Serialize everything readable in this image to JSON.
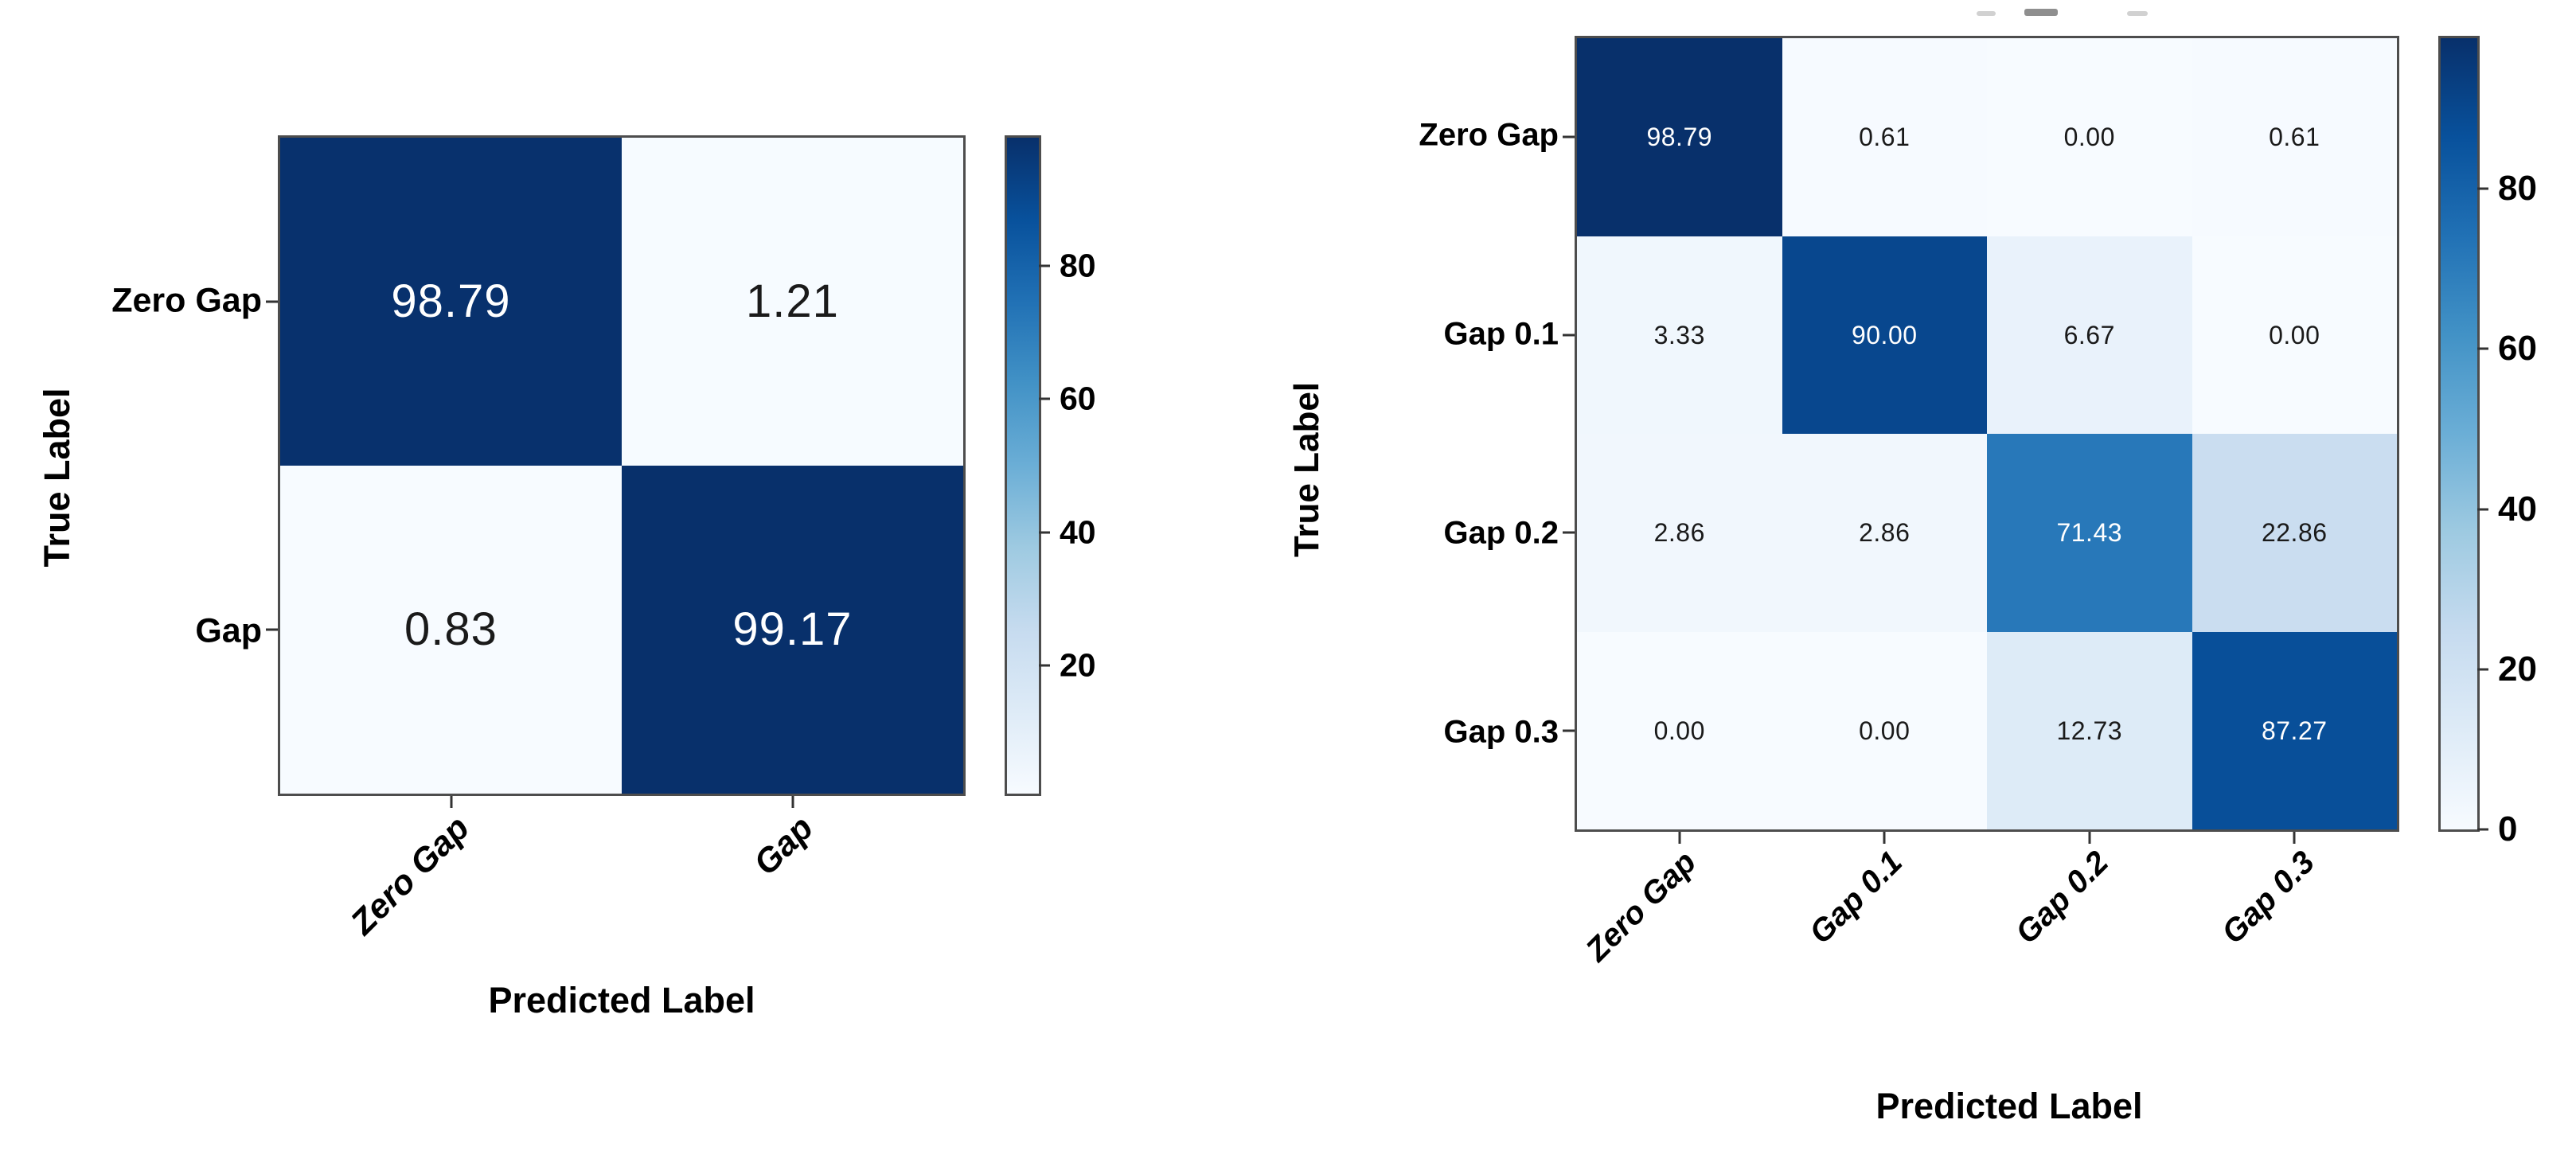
{
  "page": {
    "background": "#ffffff"
  },
  "chart_data": [
    {
      "type": "heatmap",
      "name": "confusion-matrix-2-class",
      "title": "",
      "xlabel": "Predicted Label",
      "ylabel": "True Label",
      "categories": [
        "Zero Gap",
        "Gap"
      ],
      "matrix": [
        [
          98.79,
          1.21
        ],
        [
          0.83,
          99.17
        ]
      ],
      "value_decimals": 2,
      "colormap": "Blues",
      "vmin": 0.83,
      "vmax": 99.17,
      "colorbar_ticks": [
        20,
        40,
        60,
        80
      ],
      "legend_position": "right-colorbar",
      "grid": false
    },
    {
      "type": "heatmap",
      "name": "confusion-matrix-4-class",
      "title": "",
      "xlabel": "Predicted Label",
      "ylabel": "True Label",
      "categories": [
        "Zero Gap",
        "Gap 0.1",
        "Gap 0.2",
        "Gap 0.3"
      ],
      "matrix": [
        [
          98.79,
          0.61,
          0.0,
          0.61
        ],
        [
          3.33,
          90.0,
          6.67,
          0.0
        ],
        [
          2.86,
          2.86,
          71.43,
          22.86
        ],
        [
          0.0,
          0.0,
          12.73,
          87.27
        ]
      ],
      "value_decimals": 2,
      "colormap": "Blues",
      "vmin": 0,
      "vmax": 98.79,
      "colorbar_ticks": [
        0,
        20,
        40,
        60,
        80
      ],
      "legend_position": "right-colorbar",
      "grid": false
    }
  ],
  "colors": {
    "colormap_stops": [
      "#f7fbff",
      "#deebf7",
      "#c6dbef",
      "#9ecae1",
      "#6baed6",
      "#4292c6",
      "#2171b5",
      "#08519c",
      "#08306b"
    ],
    "cell_text_dark": "#1a1a1a",
    "cell_text_light": "#ffffff",
    "axis_spine": "#4d4d4d",
    "tick_mark": "#333333",
    "label_text": "#000000"
  }
}
